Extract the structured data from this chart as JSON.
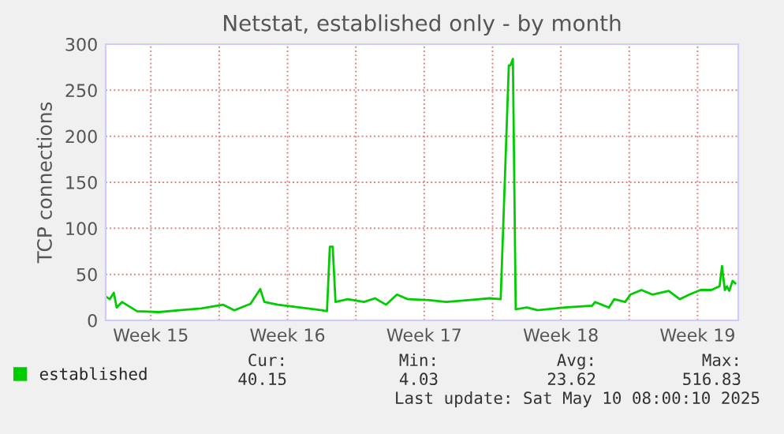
{
  "chart_data": {
    "type": "line",
    "title": "Netstat, established only - by month",
    "ylabel": "TCP connections",
    "x": [
      "2025-04-08T04:30",
      "2025-04-08T09:30",
      "2025-04-08T14:30",
      "2025-04-08T18:00",
      "2025-04-09T00:30",
      "2025-04-09T06:00",
      "2025-04-09T19:00",
      "2025-04-10T22:00",
      "2025-04-11T23:00",
      "2025-04-13T02:00",
      "2025-04-14T05:00",
      "2025-04-14T18:30",
      "2025-04-15T14:30",
      "2025-04-16T02:30",
      "2025-04-16T07:30",
      "2025-04-17T00:00",
      "2025-04-18T03:00",
      "2025-04-19T06:00",
      "2025-04-19T12:30",
      "2025-04-19T16:00",
      "2025-04-19T19:30",
      "2025-04-19T23:00",
      "2025-04-20T14:00",
      "2025-04-21T10:00",
      "2025-04-21T23:30",
      "2025-04-22T13:00",
      "2025-04-23T02:30",
      "2025-04-23T16:00",
      "2025-04-24T18:30",
      "2025-04-25T15:00",
      "2025-04-26T18:00",
      "2025-04-27T20:30",
      "2025-04-28T10:00",
      "2025-04-28T20:00",
      "2025-04-28T22:00",
      "2025-04-29T01:00",
      "2025-04-29T04:30",
      "2025-04-29T18:00",
      "2025-04-30T07:30",
      "2025-05-01T17:00",
      "2025-05-03T02:30",
      "2025-05-03T06:00",
      "2025-05-03T23:00",
      "2025-05-04T05:30",
      "2025-05-04T19:00",
      "2025-05-05T01:30",
      "2025-05-05T15:00",
      "2025-05-06T04:30",
      "2025-05-07T00:30",
      "2025-05-07T14:00",
      "2025-05-08T02:00",
      "2025-05-08T15:30",
      "2025-05-09T05:00",
      "2025-05-09T15:00",
      "2025-05-09T18:00",
      "2025-05-09T21:30",
      "2025-05-10T00:00",
      "2025-05-10T03:00",
      "2025-05-10T07:00",
      "2025-05-10T10:30"
    ],
    "series": [
      {
        "name": "established",
        "color": "#00cc00",
        "values": [
          26,
          23,
          30,
          14,
          20,
          17,
          10,
          9,
          11,
          13,
          17,
          11,
          18,
          34,
          20,
          17,
          14,
          11,
          10,
          80,
          80,
          20,
          23,
          20,
          24,
          17,
          28,
          23,
          22,
          20,
          22,
          24,
          23,
          277,
          277,
          284,
          12,
          14,
          11,
          14,
          16,
          20,
          14,
          23,
          20,
          28,
          33,
          28,
          32,
          23,
          28,
          33,
          33,
          37,
          59,
          33,
          37,
          32,
          43,
          40
        ]
      }
    ],
    "xlim": [
      "2025-04-08T04:30",
      "2025-05-10T14:00"
    ],
    "xticks": [
      {
        "value": "2025-04-10T12:00",
        "label": "Week 15"
      },
      {
        "value": "2025-04-14",
        "label": null
      },
      {
        "value": "2025-04-17T12:00",
        "label": "Week 16"
      },
      {
        "value": "2025-04-21",
        "label": null
      },
      {
        "value": "2025-04-24T12:00",
        "label": "Week 17"
      },
      {
        "value": "2025-04-28",
        "label": null
      },
      {
        "value": "2025-05-01T12:00",
        "label": "Week 18"
      },
      {
        "value": "2025-05-05",
        "label": null
      },
      {
        "value": "2025-05-08T12:00",
        "label": "Week 19"
      }
    ],
    "ylim": [
      0,
      300
    ],
    "yticks": [
      0,
      50,
      100,
      150,
      200,
      250,
      300
    ],
    "grid": true,
    "legend": "bottom left",
    "marker": "none",
    "line_style": "solid",
    "annotations": [
      "Cur:",
      "Min:",
      "Avg:",
      "Max:",
      "40.15",
      "4.03",
      "23.62",
      "516.83",
      "Last update: Sat May 10 08:00:10 2025"
    ]
  }
}
